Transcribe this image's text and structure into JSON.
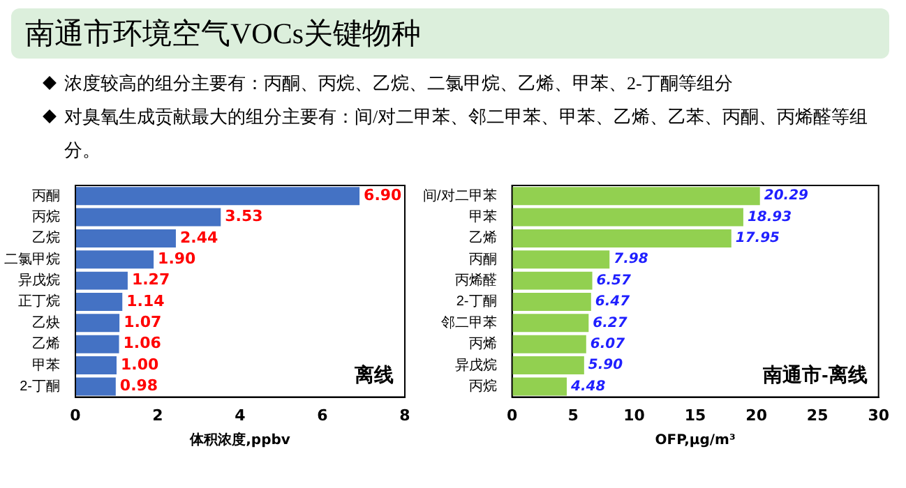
{
  "chart_data": [
    {
      "type": "other",
      "title": "南通市环境空气VOCs关键物种",
      "annotations": [
        "浓度较高的组分主要有：丙酮、丙烷、乙烷、二氯甲烷、乙烯、甲苯、2-丁酮等组分",
        "对臭氧生成贡献最大的组分主要有：间/对二甲苯、邻二甲苯、甲苯、乙烯、乙苯、丙酮、丙烯醛等组分。"
      ]
    },
    {
      "type": "bar",
      "orientation": "horizontal",
      "categories": [
        "丙酮",
        "丙烷",
        "乙烷",
        "二氯甲烷",
        "异戊烷",
        "正丁烷",
        "乙炔",
        "乙烯",
        "甲苯",
        "2-丁酮"
      ],
      "values": [
        6.9,
        3.53,
        2.44,
        1.9,
        1.27,
        1.14,
        1.07,
        1.06,
        1.0,
        0.98
      ],
      "value_labels": [
        "6.90",
        "3.53",
        "2.44",
        "1.90",
        "1.27",
        "1.14",
        "1.07",
        "1.06",
        "1.00",
        "0.98"
      ],
      "color": "#4472c4",
      "xlim": [
        0,
        8
      ],
      "xticks": [
        0,
        2,
        4,
        6,
        8
      ],
      "xlabel": "体积浓度,ppbv",
      "annotations": [
        "离线"
      ]
    },
    {
      "type": "bar",
      "orientation": "horizontal",
      "categories": [
        "间/对二甲苯",
        "甲苯",
        "乙烯",
        "丙酮",
        "丙烯醛",
        "2-丁酮",
        "邻二甲苯",
        "丙烯",
        "异戊烷",
        "丙烷"
      ],
      "values": [
        20.29,
        18.93,
        17.95,
        7.98,
        6.57,
        6.47,
        6.27,
        6.07,
        5.9,
        4.48
      ],
      "value_labels": [
        "20.29",
        "18.93",
        "17.95",
        "7.98",
        "6.57",
        "6.47",
        "6.27",
        "6.07",
        "5.90",
        "4.48"
      ],
      "color": "#92d050",
      "xlim": [
        0,
        30
      ],
      "xticks": [
        0,
        5,
        10,
        15,
        20,
        25,
        30
      ],
      "xlabel": "OFP,μg/m³",
      "annotations": [
        "南通市-离线"
      ]
    }
  ]
}
